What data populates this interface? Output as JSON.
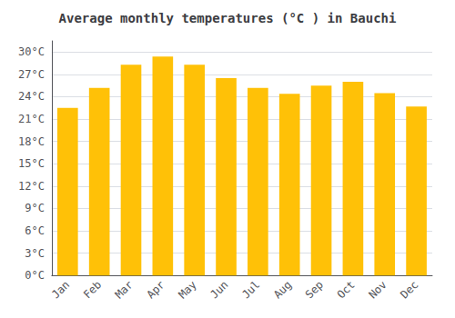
{
  "chart_data": {
    "type": "bar",
    "title": "Average monthly temperatures (°C ) in Bauchi",
    "categories": [
      "Jan",
      "Feb",
      "Mar",
      "Apr",
      "May",
      "Jun",
      "Jul",
      "Aug",
      "Sep",
      "Oct",
      "Nov",
      "Dec"
    ],
    "values": [
      22.5,
      25.2,
      28.3,
      29.4,
      28.3,
      26.5,
      25.2,
      24.4,
      25.5,
      26.0,
      24.5,
      22.7
    ],
    "color": "#FFC107",
    "ylim": [
      0,
      31.5
    ],
    "yticks": [
      {
        "value": 0,
        "label": "0°C"
      },
      {
        "value": 3,
        "label": "3°C"
      },
      {
        "value": 6,
        "label": "6°C"
      },
      {
        "value": 9,
        "label": "9°C"
      },
      {
        "value": 12,
        "label": "12°C"
      },
      {
        "value": 15,
        "label": "15°C"
      },
      {
        "value": 18,
        "label": "18°C"
      },
      {
        "value": 21,
        "label": "21°C"
      },
      {
        "value": 24,
        "label": "24°C"
      },
      {
        "value": 27,
        "label": "27°C"
      },
      {
        "value": 30,
        "label": "30°C"
      }
    ],
    "grid": true
  }
}
